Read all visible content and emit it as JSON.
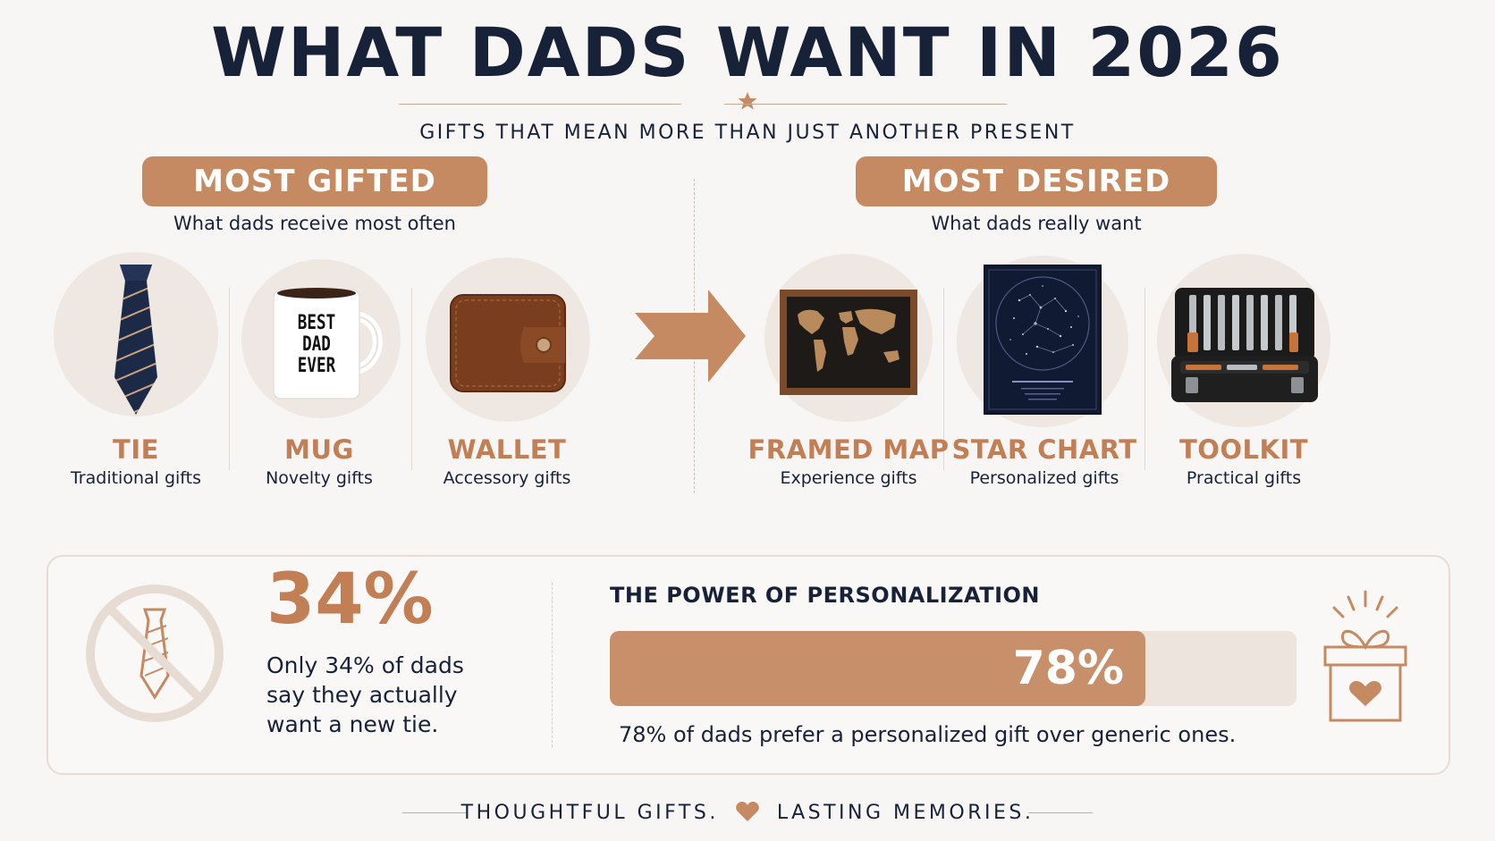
{
  "header": {
    "title": "WHAT DADS WANT IN 2026",
    "subtitle": "GIFTS THAT MEAN MORE THAN JUST ANOTHER PRESENT"
  },
  "most_gifted": {
    "heading": "MOST GIFTED",
    "subheading": "What dads receive most often",
    "items": [
      {
        "name": "TIE",
        "category": "Traditional gifts",
        "icon": "tie-icon"
      },
      {
        "name": "MUG",
        "category": "Novelty gifts",
        "icon": "mug-icon",
        "mug_text": [
          "BEST",
          "DAD",
          "EVER"
        ]
      },
      {
        "name": "WALLET",
        "category": "Accessory gifts",
        "icon": "wallet-icon"
      }
    ]
  },
  "most_desired": {
    "heading": "MOST DESIRED",
    "subheading": "What dads really want",
    "items": [
      {
        "name": "FRAMED MAP",
        "category": "Experience gifts",
        "icon": "framed-map-icon"
      },
      {
        "name": "STAR CHART",
        "category": "Personalized gifts",
        "icon": "star-chart-icon"
      },
      {
        "name": "TOOLKIT",
        "category": "Practical gifts",
        "icon": "toolkit-icon"
      }
    ]
  },
  "stats": {
    "tie_stat": {
      "value": "34%",
      "lines": [
        "Only 34% of dads",
        "say they actually",
        "want a new tie."
      ]
    },
    "personalization": {
      "title": "THE POWER OF PERSONALIZATION",
      "percent": 78,
      "percent_label": "78%",
      "description": "78% of dads prefer a personalized gift over generic ones."
    }
  },
  "footer": {
    "left_text": "THOUGHTFUL GIFTS.",
    "right_text": "LASTING MEMORIES."
  },
  "colors": {
    "navy": "#172238",
    "accent": "#c68a62",
    "accent_text": "#c27e55",
    "background": "#f8f6f4"
  }
}
